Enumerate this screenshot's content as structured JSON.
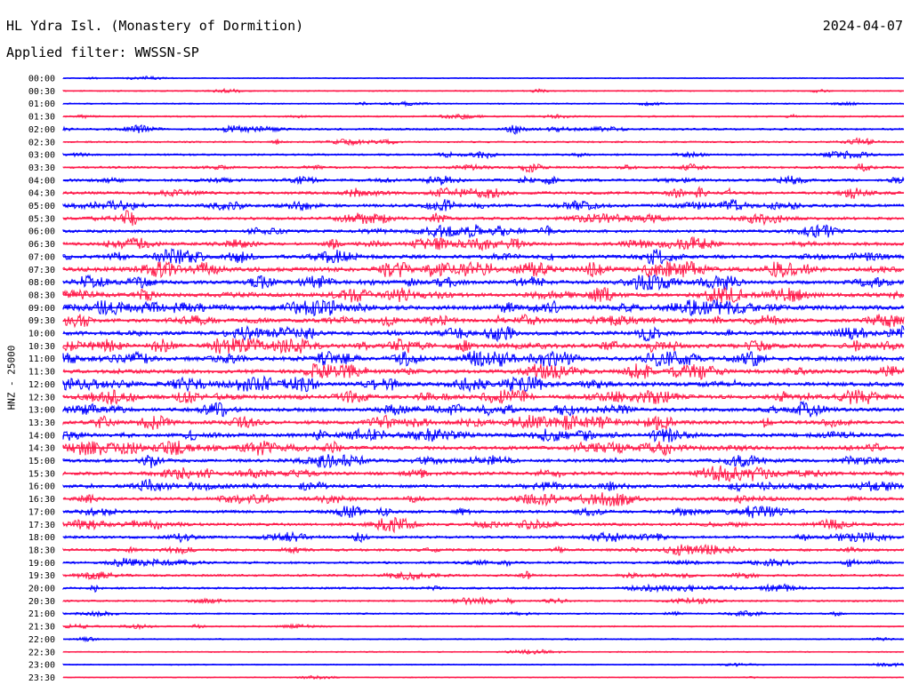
{
  "header": {
    "title": "HL Ydra Isl. (Monastery of Dormition)",
    "date": "2024-04-07",
    "filter": "Applied filter: WWSSN-SP"
  },
  "colors": {
    "trace_a": "#0000ff",
    "trace_b": "#ff1a4a"
  },
  "chart_data": {
    "type": "line",
    "title": "HL Ydra Isl. (Monastery of Dormition)",
    "ylabel": "HNZ - 25000",
    "row_labels": [
      "00:00",
      "00:30",
      "01:00",
      "01:30",
      "02:00",
      "02:30",
      "03:00",
      "03:30",
      "04:00",
      "04:30",
      "05:00",
      "05:30",
      "06:00",
      "06:30",
      "07:00",
      "07:30",
      "08:00",
      "08:30",
      "09:00",
      "09:30",
      "10:00",
      "10:30",
      "11:00",
      "11:30",
      "12:00",
      "12:30",
      "13:00",
      "13:30",
      "14:00",
      "14:30",
      "15:00",
      "15:30",
      "16:00",
      "16:30",
      "17:00",
      "17:30",
      "18:00",
      "18:30",
      "19:00",
      "19:30",
      "20:00",
      "20:30",
      "21:00",
      "21:30",
      "22:00",
      "22:30",
      "23:00",
      "23:30"
    ],
    "row_colors": [
      "trace_a",
      "trace_b"
    ],
    "row_activity": [
      0.6,
      1.0,
      1.2,
      1.5,
      2.5,
      1.8,
      2.2,
      2.8,
      3.5,
      4.0,
      4.5,
      4.2,
      4.0,
      4.5,
      5.5,
      7.0,
      5.5,
      6.0,
      7.0,
      5.5,
      6.0,
      6.5,
      6.5,
      6.0,
      6.5,
      6.0,
      5.5,
      5.5,
      5.5,
      5.5,
      5.0,
      5.0,
      4.5,
      4.5,
      4.0,
      4.0,
      3.5,
      3.5,
      3.0,
      2.8,
      2.5,
      2.0,
      1.5,
      1.2,
      1.0,
      0.8,
      0.8,
      0.5
    ]
  }
}
